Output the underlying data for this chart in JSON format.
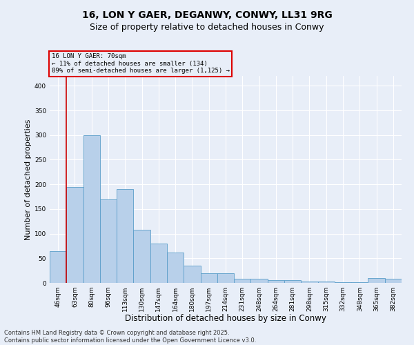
{
  "title_line1": "16, LON Y GAER, DEGANWY, CONWY, LL31 9RG",
  "title_line2": "Size of property relative to detached houses in Conwy",
  "xlabel": "Distribution of detached houses by size in Conwy",
  "ylabel": "Number of detached properties",
  "bar_labels": [
    "46sqm",
    "63sqm",
    "80sqm",
    "96sqm",
    "113sqm",
    "130sqm",
    "147sqm",
    "164sqm",
    "180sqm",
    "197sqm",
    "214sqm",
    "231sqm",
    "248sqm",
    "264sqm",
    "281sqm",
    "298sqm",
    "315sqm",
    "332sqm",
    "348sqm",
    "365sqm",
    "382sqm"
  ],
  "bar_values": [
    65,
    195,
    300,
    170,
    190,
    108,
    80,
    62,
    35,
    20,
    20,
    8,
    8,
    5,
    5,
    3,
    3,
    2,
    2,
    10,
    8
  ],
  "bar_color": "#b8d0ea",
  "bar_edge_color": "#5a9ec9",
  "background_color": "#e8eef8",
  "grid_color": "#ffffff",
  "annotation_line1": "16 LON Y GAER: 70sqm",
  "annotation_line2": "← 11% of detached houses are smaller (134)",
  "annotation_line3": "89% of semi-detached houses are larger (1,125) →",
  "annotation_box_color": "#dd0000",
  "vline_color": "#cc0000",
  "vline_x_index": 1,
  "ylim": [
    0,
    420
  ],
  "yticks": [
    0,
    50,
    100,
    150,
    200,
    250,
    300,
    350,
    400
  ],
  "footnote": "Contains HM Land Registry data © Crown copyright and database right 2025.\nContains public sector information licensed under the Open Government Licence v3.0.",
  "title_fontsize": 10,
  "subtitle_fontsize": 9,
  "xlabel_fontsize": 8.5,
  "ylabel_fontsize": 8,
  "tick_fontsize": 6.5,
  "footnote_fontsize": 6
}
